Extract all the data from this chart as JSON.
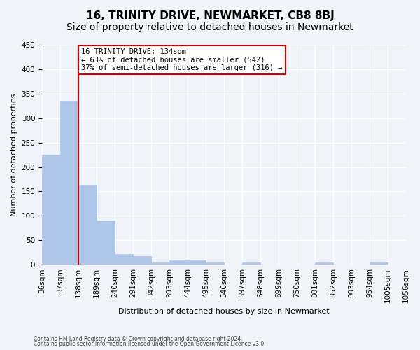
{
  "title": "16, TRINITY DRIVE, NEWMARKET, CB8 8BJ",
  "subtitle": "Size of property relative to detached houses in Newmarket",
  "xlabel": "Distribution of detached houses by size in Newmarket",
  "ylabel": "Number of detached properties",
  "bin_edges": [
    "36sqm",
    "87sqm",
    "138sqm",
    "189sqm",
    "240sqm",
    "291sqm",
    "342sqm",
    "393sqm",
    "444sqm",
    "495sqm",
    "546sqm",
    "597sqm",
    "648sqm",
    "699sqm",
    "750sqm",
    "801sqm",
    "852sqm",
    "903sqm",
    "954sqm",
    "1005sqm",
    "1056sqm"
  ],
  "bar_heights": [
    225,
    335,
    163,
    90,
    22,
    17,
    5,
    9,
    9,
    5,
    0,
    5,
    0,
    0,
    0,
    5,
    0,
    0,
    5,
    0
  ],
  "bar_color": "#aec6e8",
  "bar_edge_color": "#aec6e8",
  "property_line_x": 2,
  "annotation_title": "16 TRINITY DRIVE: 134sqm",
  "annotation_line1": "← 63% of detached houses are smaller (542)",
  "annotation_line2": "37% of semi-detached houses are larger (316) →",
  "annotation_box_color": "#ffffff",
  "annotation_box_edge_color": "#cc0000",
  "ylim": [
    0,
    450
  ],
  "yticks": [
    0,
    50,
    100,
    150,
    200,
    250,
    300,
    350,
    400,
    450
  ],
  "footnote1": "Contains HM Land Registry data © Crown copyright and database right 2024.",
  "footnote2": "Contains public sector information licensed under the Open Government Licence v3.0.",
  "background_color": "#f0f4fa",
  "grid_color": "#ffffff",
  "title_fontsize": 11,
  "subtitle_fontsize": 10,
  "label_fontsize": 8,
  "tick_fontsize": 7.5
}
